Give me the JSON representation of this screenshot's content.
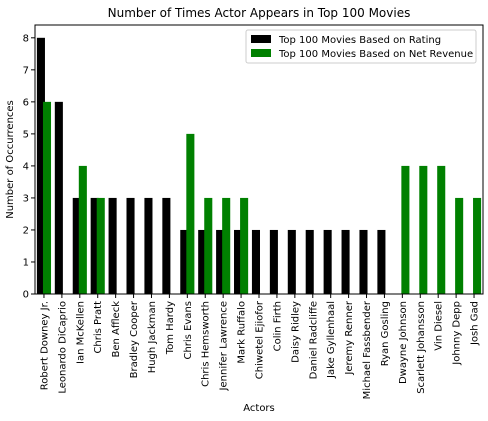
{
  "chart_data": {
    "type": "bar",
    "title": "Number of Times Actor Appears in Top 100 Movies",
    "xlabel": "Actors",
    "ylabel": "Number of Occurrences",
    "ylim": [
      0,
      8.4
    ],
    "yticks": [
      0,
      1,
      2,
      3,
      4,
      5,
      6,
      7,
      8
    ],
    "legend_position": "top-right",
    "grid": false,
    "categories": [
      "Robert Downey Jr.",
      "Leonardo DiCaprio",
      "Ian McKellen",
      "Chris Pratt",
      "Ben Affleck",
      "Bradley Cooper",
      "Hugh Jackman",
      "Tom Hardy",
      "Chris Evans",
      "Chris Hemsworth",
      "Jennifer Lawrence",
      "Mark Ruffalo",
      "Chiwetel Ejiofor",
      "Colin Firth",
      "Daisy Ridley",
      "Daniel Radcliffe",
      "Jake Gyllenhaal",
      "Jeremy Renner",
      "Michael Fassbender",
      "Ryan Gosling",
      "Dwayne Johnson",
      "Scarlett Johansson",
      "Vin Diesel",
      "Johnny Depp",
      "Josh Gad"
    ],
    "series": [
      {
        "name": "Top 100 Movies Based on Rating",
        "color": "#000000",
        "values": [
          8,
          6,
          3,
          3,
          3,
          3,
          3,
          3,
          2,
          2,
          2,
          2,
          2,
          2,
          2,
          2,
          2,
          2,
          2,
          2,
          0,
          0,
          0,
          0,
          0
        ]
      },
      {
        "name": "Top 100 Movies Based on Net Revenue",
        "color": "#008000",
        "values": [
          6,
          0,
          4,
          3,
          0,
          0,
          0,
          0,
          5,
          3,
          3,
          3,
          0,
          0,
          0,
          0,
          0,
          0,
          0,
          0,
          4,
          4,
          4,
          3,
          3
        ]
      }
    ]
  }
}
